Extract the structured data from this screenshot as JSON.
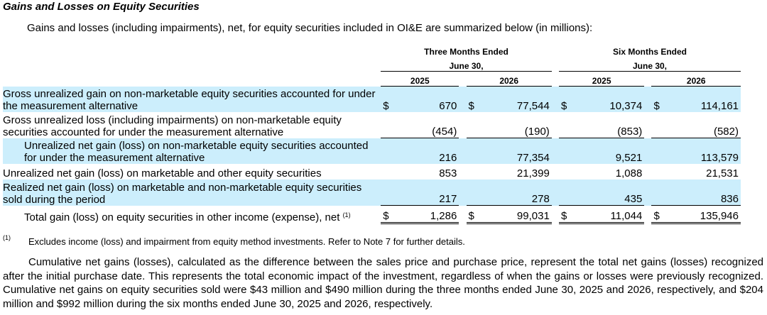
{
  "title": "Gains and Losses on Equity Securities",
  "intro": "Gains and losses (including impairments), net, for equity securities included in OI&E are summarized below (in millions):",
  "header": {
    "group1_line1": "Three Months Ended",
    "group1_line2": "June 30,",
    "group2_line1": "Six Months Ended",
    "group2_line2": "June 30,",
    "cols": [
      "2025",
      "2026",
      "2025",
      "2026"
    ]
  },
  "rows": [
    {
      "label": "Gross unrealized gain on non-marketable equity securities accounted for under the measurement alternative",
      "dollar": "$",
      "values": [
        "670",
        "77,544",
        "10,374",
        "114,161"
      ]
    },
    {
      "label": "Gross unrealized loss (including impairments) on non-marketable equity securities accounted for under the measurement alternative",
      "values": [
        "(454)",
        "(190)",
        "(853)",
        "(582)"
      ]
    },
    {
      "label": "Unrealized net gain (loss) on non-marketable equity securities accounted for under the measurement alternative",
      "values": [
        "216",
        "77,354",
        "9,521",
        "113,579"
      ]
    },
    {
      "label": "Unrealized net gain (loss) on marketable and other equity securities",
      "values": [
        "853",
        "21,399",
        "1,088",
        "21,531"
      ]
    },
    {
      "label": "Realized net gain (loss) on marketable and non-marketable equity securities sold during the period",
      "values": [
        "217",
        "278",
        "435",
        "836"
      ]
    },
    {
      "label": "Total gain (loss) on equity securities in other income (expense), net",
      "footnote_ref": "(1)",
      "dollar": "$",
      "values": [
        "1,286",
        "99,031",
        "11,044",
        "135,946"
      ]
    }
  ],
  "footnote": {
    "mark": "(1)",
    "text": "Excludes income (loss) and impairment from equity method investments. Refer to Note 7 for further details."
  },
  "paragraph": "Cumulative net gains (losses), calculated as the difference between the sales price and purchase price, represent the total net gains (losses) recognized after the initial purchase date. This represents the total economic impact of the investment, regardless of when the gains or losses were previously recognized. Cumulative net gains on equity securities sold were $43 million and $490 million during the three months ended June 30, 2025 and 2026, respectively, and $204 million and $992 million during the six months ended June 30, 2025 and 2026, respectively.",
  "colors": {
    "row_shade": "#cceefc"
  }
}
